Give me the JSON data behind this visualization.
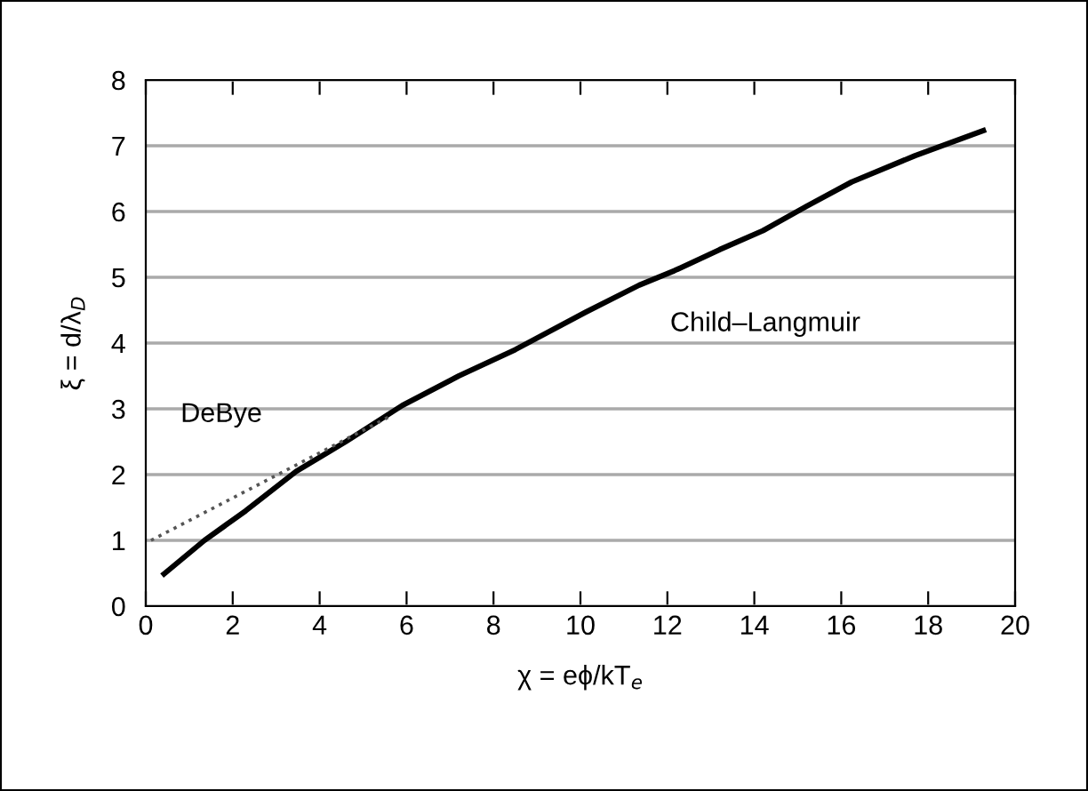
{
  "chart_data": {
    "type": "line",
    "xlabel": "χ = eϕ/kT$_{e}$",
    "ylabel": "ξ = d/λ$_{D}$",
    "xlim": [
      0,
      20
    ],
    "ylim": [
      0,
      8
    ],
    "xticks": [
      0,
      2,
      4,
      6,
      8,
      10,
      12,
      14,
      16,
      18,
      20
    ],
    "yticks": [
      0,
      1,
      2,
      3,
      4,
      5,
      6,
      7,
      8
    ],
    "grid": "y",
    "legend": false,
    "series": [
      {
        "name": "Child–Langmuir",
        "x": [
          0.42,
          1.35,
          2.3,
          3.46,
          4.6,
          5.9,
          7.2,
          8.5,
          10.12,
          11.35,
          12.16,
          13.2,
          14.2,
          15.2,
          16.24,
          17.7,
          19.27
        ],
        "values": [
          0.49,
          1.0,
          1.45,
          2.05,
          2.5,
          3.05,
          3.5,
          3.9,
          4.47,
          4.88,
          5.1,
          5.42,
          5.71,
          6.08,
          6.45,
          6.85,
          7.23
        ],
        "color": "#000000",
        "line_style": "solid"
      },
      {
        "name": "DeBye",
        "x": [
          0.12,
          5.63
        ],
        "values": [
          1.0,
          2.89
        ],
        "color": "#555555",
        "line_style": "dotted"
      }
    ]
  }
}
